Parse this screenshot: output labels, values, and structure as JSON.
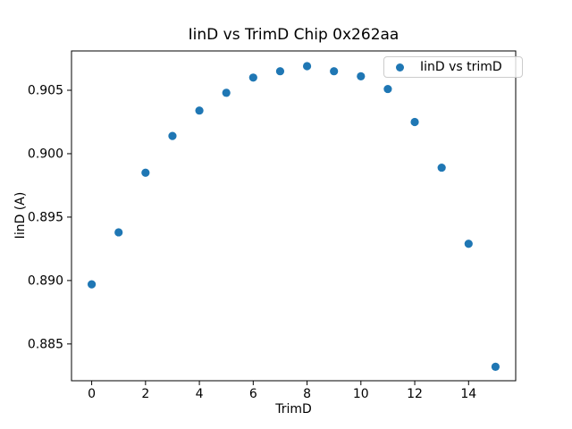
{
  "chart_data": {
    "type": "scatter",
    "title": "IinD vs TrimD Chip 0x262aa",
    "xlabel": "TrimD",
    "ylabel": "IinD (A)",
    "legend_label": "IinD vs trimD",
    "legend_position": "upper right",
    "marker_color": "#1f77b4",
    "marker_radius_px": 4.6,
    "grid": false,
    "x": [
      0,
      1,
      2,
      3,
      4,
      5,
      6,
      7,
      8,
      9,
      10,
      11,
      12,
      13,
      14,
      15
    ],
    "y": [
      0.8897,
      0.8938,
      0.8985,
      0.9014,
      0.9034,
      0.9048,
      0.906,
      0.9065,
      0.9069,
      0.9065,
      0.9061,
      0.9051,
      0.9025,
      0.8989,
      0.8929,
      0.8832
    ],
    "xlim": [
      -0.75,
      15.75
    ],
    "ylim": [
      0.8821,
      0.9081
    ],
    "xticks": [
      0,
      2,
      4,
      6,
      8,
      10,
      12,
      14
    ],
    "yticks": [
      0.885,
      0.89,
      0.895,
      0.9,
      0.905
    ],
    "ytick_decimals": 3,
    "axis_color": "#000000",
    "background": "#ffffff"
  }
}
